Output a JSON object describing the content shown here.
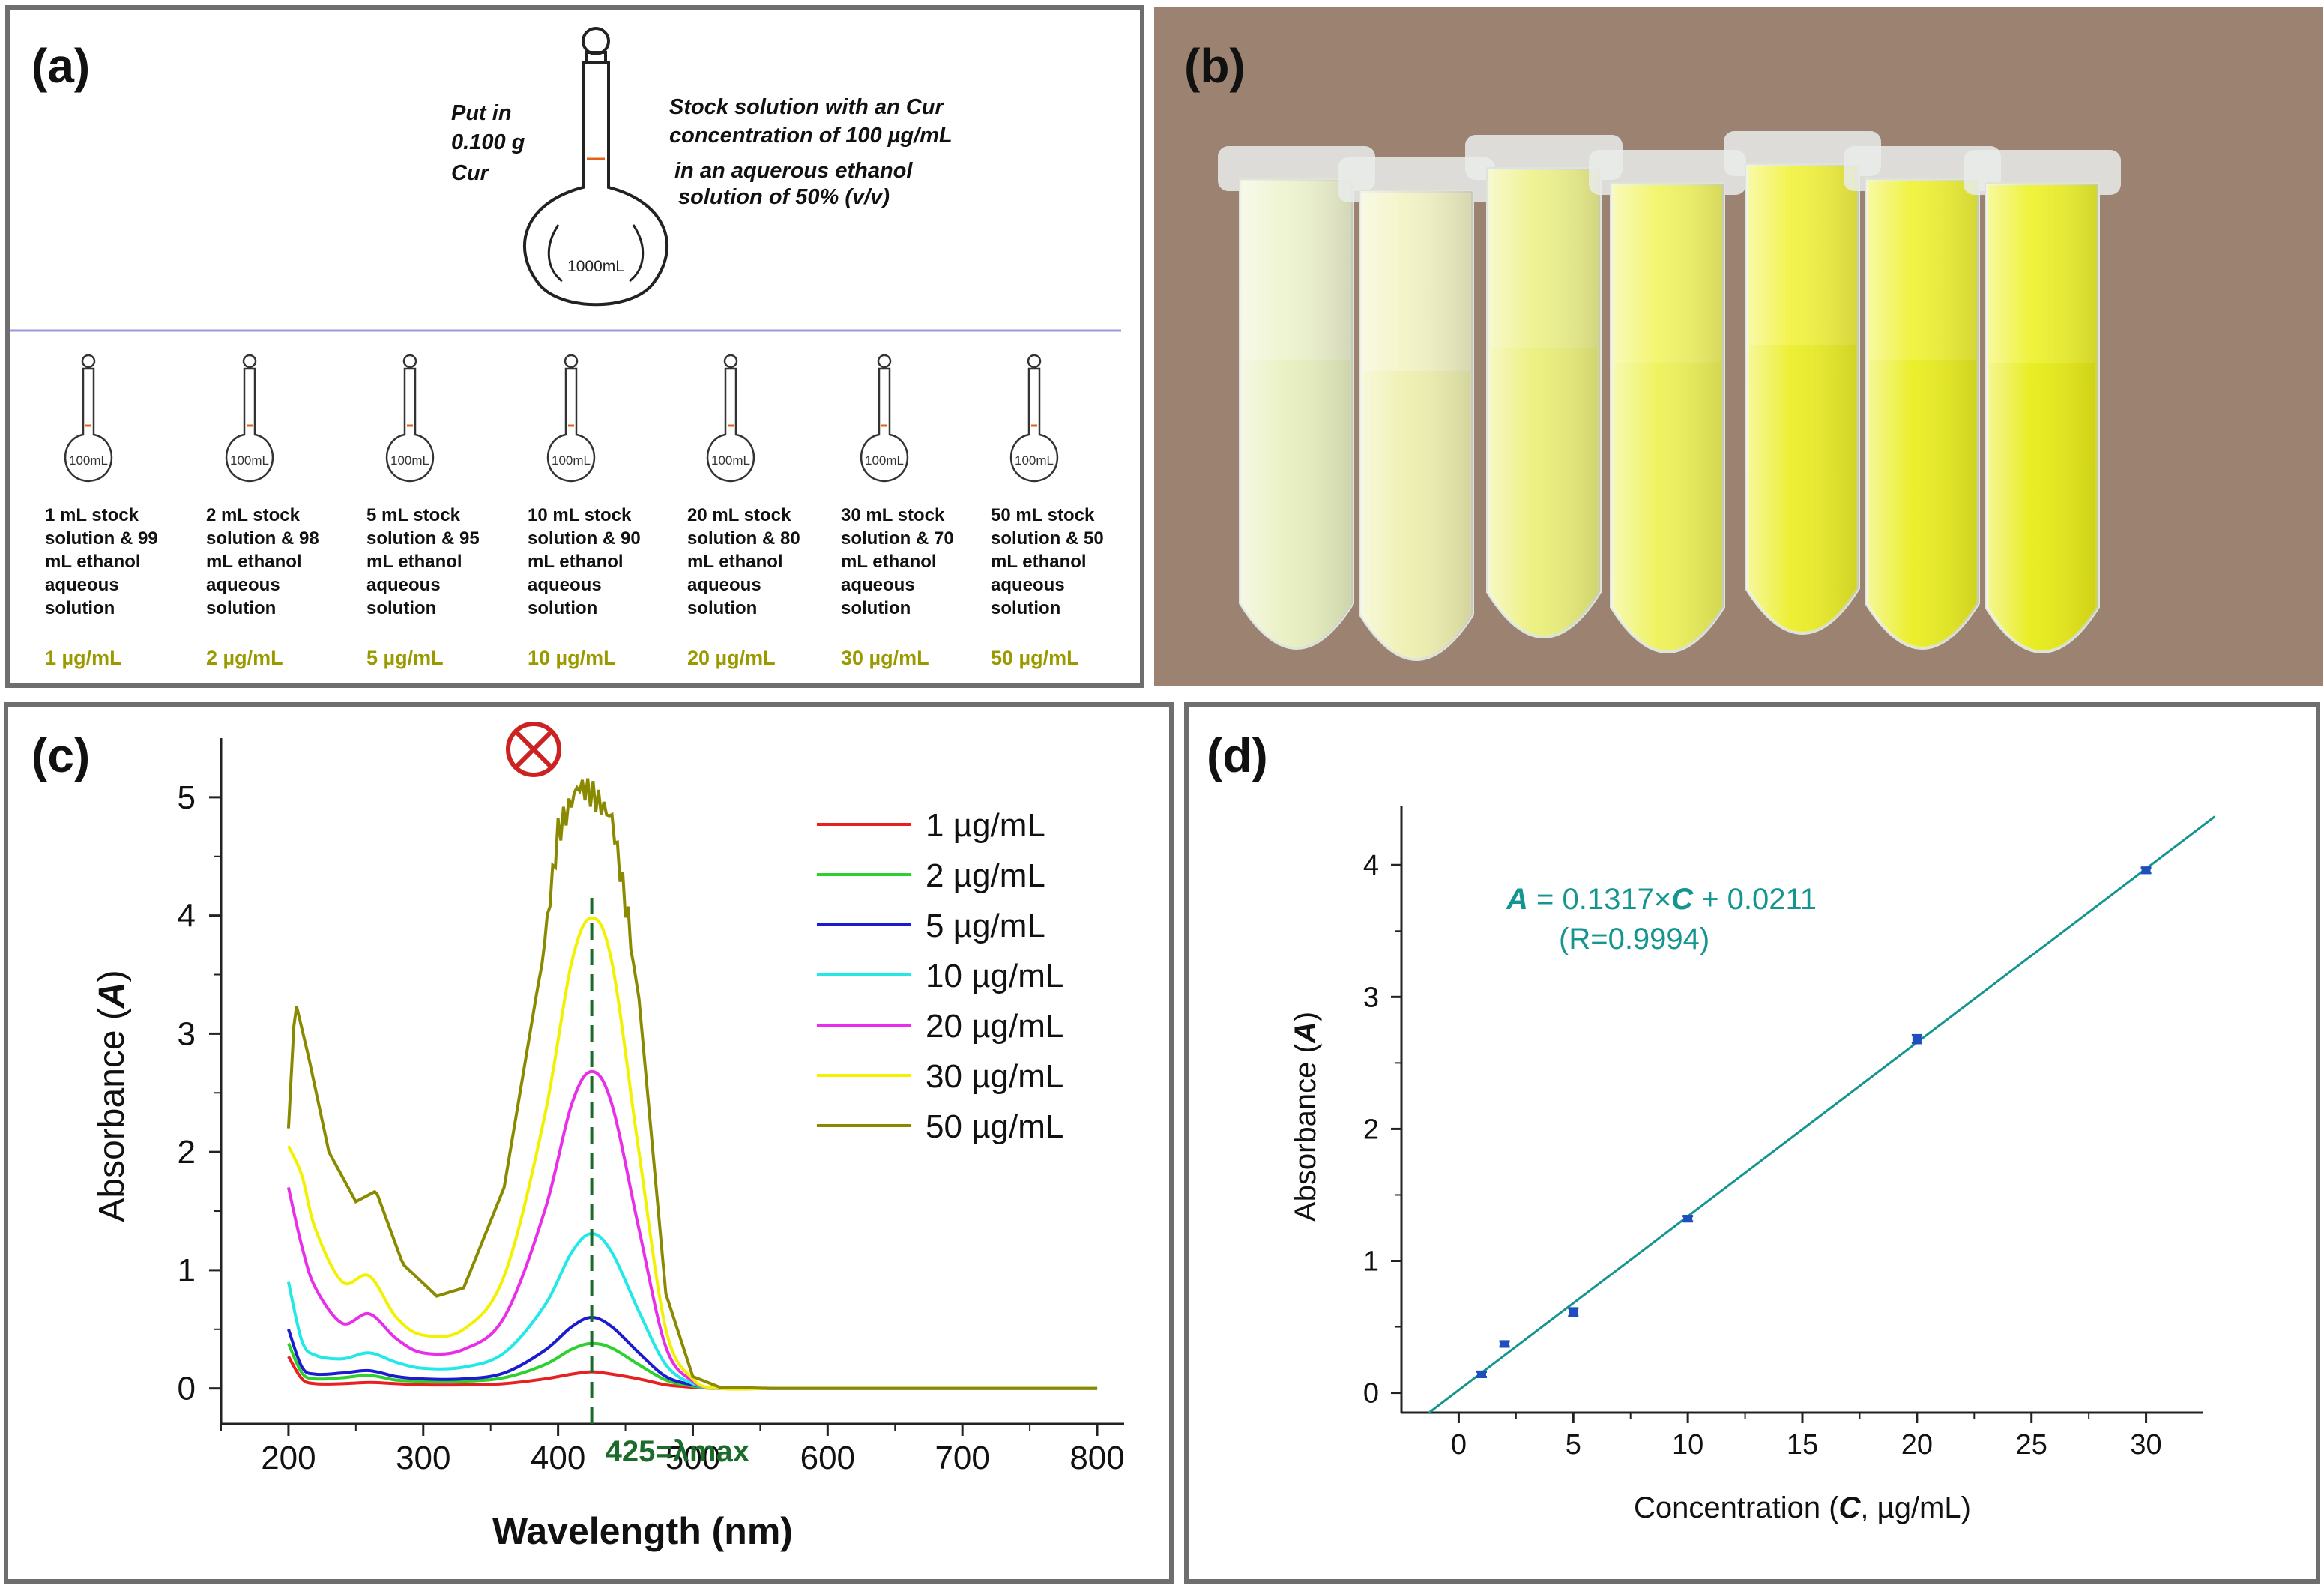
{
  "panel_a": {
    "label": "(a)",
    "put_in": [
      "Put in",
      "0.100 g",
      "Cur"
    ],
    "stock_text": [
      "Stock solution with an Cur",
      "concentration of 100 µg/mL",
      "in an aquerous ethanol",
      "solution of 50% (v/v)"
    ],
    "big_flask_label": "1000mL",
    "small_flask_label": "100mL",
    "dilutions": [
      {
        "lines": [
          "1 mL stock",
          "solution & 99",
          "mL ethanol",
          "aqueous",
          "solution"
        ],
        "conc": "1 µg/mL"
      },
      {
        "lines": [
          "2 mL stock",
          "solution & 98",
          "mL ethanol",
          "aqueous",
          "solution"
        ],
        "conc": "2 µg/mL"
      },
      {
        "lines": [
          "5 mL stock",
          "solution & 95",
          "mL ethanol",
          "aqueous",
          "solution"
        ],
        "conc": "5 µg/mL"
      },
      {
        "lines": [
          "10 mL stock",
          "solution & 90",
          "mL ethanol",
          "aqueous",
          "solution"
        ],
        "conc": "10 µg/mL"
      },
      {
        "lines": [
          "20 mL stock",
          "solution & 80",
          "mL ethanol",
          "aqueous",
          "solution"
        ],
        "conc": "20 µg/mL"
      },
      {
        "lines": [
          "30 mL stock",
          "solution & 70",
          "mL ethanol",
          "aqueous",
          "solution"
        ],
        "conc": "30 µg/mL"
      },
      {
        "lines": [
          "50 mL stock",
          "solution & 50",
          "mL ethanol",
          "aqueous",
          "solution"
        ],
        "conc": "50 µg/mL"
      }
    ]
  },
  "panel_b": {
    "label": "(b)"
  },
  "colors": {
    "frame": "#6e6e6e",
    "concentration_text": "#9a9a00",
    "fit_line": "#14958f",
    "equation": "#14958f",
    "data_points": "#1f4fbf",
    "lambda_line": "#1b6b2a",
    "cross_marker": "#cc2222"
  },
  "chart_data": [
    {
      "panel": "(c)",
      "type": "line",
      "xlabel": "Wavelength (nm)",
      "ylabel": "Absorbance (A)",
      "ylabel_italic_symbol": "A",
      "xlim": [
        150,
        820
      ],
      "ylim": [
        -0.3,
        5.5
      ],
      "xticks": [
        200,
        300,
        400,
        500,
        600,
        700,
        800
      ],
      "yticks": [
        0,
        1,
        2,
        3,
        4,
        5
      ],
      "annotation": "425=λmax",
      "annotation_x": 425,
      "series": [
        {
          "name": "1 µg/mL",
          "color": "#e82020",
          "x": [
            200,
            210,
            220,
            240,
            260,
            280,
            300,
            330,
            360,
            390,
            410,
            425,
            440,
            460,
            480,
            500,
            520,
            560,
            600,
            800
          ],
          "values": [
            0.27,
            0.08,
            0.04,
            0.04,
            0.05,
            0.04,
            0.03,
            0.03,
            0.04,
            0.08,
            0.12,
            0.14,
            0.12,
            0.08,
            0.03,
            0.01,
            0.0,
            0.0,
            0.0,
            0.0
          ]
        },
        {
          "name": "2 µg/mL",
          "color": "#2ed02e",
          "x": [
            200,
            210,
            220,
            240,
            260,
            280,
            300,
            330,
            360,
            390,
            410,
            425,
            440,
            460,
            480,
            500,
            520,
            560,
            600,
            800
          ],
          "values": [
            0.38,
            0.13,
            0.08,
            0.09,
            0.11,
            0.07,
            0.06,
            0.06,
            0.09,
            0.2,
            0.33,
            0.38,
            0.34,
            0.2,
            0.07,
            0.02,
            0.0,
            0.0,
            0.0,
            0.0
          ]
        },
        {
          "name": "5 µg/mL",
          "color": "#1b1bd0",
          "x": [
            200,
            210,
            220,
            240,
            260,
            280,
            300,
            330,
            360,
            390,
            410,
            425,
            440,
            460,
            480,
            500,
            520,
            560,
            600,
            800
          ],
          "values": [
            0.5,
            0.18,
            0.12,
            0.13,
            0.15,
            0.1,
            0.08,
            0.08,
            0.13,
            0.32,
            0.52,
            0.6,
            0.52,
            0.3,
            0.1,
            0.03,
            0.0,
            0.0,
            0.0,
            0.0
          ]
        },
        {
          "name": "10 µg/mL",
          "color": "#22e8e8",
          "x": [
            200,
            210,
            220,
            240,
            260,
            280,
            300,
            330,
            360,
            390,
            410,
            425,
            440,
            460,
            480,
            500,
            520,
            560,
            600,
            800
          ],
          "values": [
            0.9,
            0.4,
            0.28,
            0.25,
            0.3,
            0.22,
            0.17,
            0.18,
            0.3,
            0.7,
            1.15,
            1.31,
            1.15,
            0.65,
            0.2,
            0.04,
            0.0,
            0.0,
            0.0,
            0.0
          ]
        },
        {
          "name": "20 µg/mL",
          "color": "#e82ee8",
          "x": [
            200,
            210,
            220,
            240,
            260,
            280,
            300,
            330,
            360,
            390,
            410,
            425,
            440,
            460,
            480,
            500,
            520,
            560,
            600,
            800
          ],
          "values": [
            1.7,
            1.2,
            0.85,
            0.55,
            0.63,
            0.42,
            0.3,
            0.33,
            0.6,
            1.5,
            2.4,
            2.68,
            2.4,
            1.35,
            0.35,
            0.06,
            0.0,
            0.0,
            0.0,
            0.0
          ]
        },
        {
          "name": "30 µg/mL",
          "color": "#f2f200",
          "x": [
            200,
            210,
            220,
            240,
            260,
            280,
            300,
            330,
            360,
            390,
            410,
            425,
            440,
            460,
            480,
            500,
            520,
            560,
            600,
            800
          ],
          "values": [
            2.05,
            1.8,
            1.35,
            0.9,
            0.95,
            0.6,
            0.45,
            0.5,
            0.95,
            2.3,
            3.6,
            3.98,
            3.6,
            2.0,
            0.5,
            0.08,
            0.0,
            0.0,
            0.0,
            0.0
          ]
        },
        {
          "name": "50 µg/mL",
          "color": "#8a8a00",
          "x": [
            200,
            205,
            215,
            230,
            250,
            265,
            285,
            310,
            330,
            360,
            385,
            400,
            415,
            425,
            440,
            460,
            480,
            500,
            520,
            560,
            600,
            800
          ],
          "values": [
            2.2,
            3.28,
            2.8,
            2.0,
            1.58,
            1.67,
            1.05,
            0.78,
            0.85,
            1.7,
            3.4,
            4.75,
            5.1,
            5.0,
            4.75,
            3.3,
            0.8,
            0.1,
            0.01,
            0.0,
            0.0,
            0.0
          ]
        }
      ]
    },
    {
      "panel": "(d)",
      "type": "scatter",
      "xlabel": "Concentration (C, µg/mL)",
      "ylabel": "Absorbance (A)",
      "xlim": [
        -2.5,
        32.5
      ],
      "ylim": [
        -0.15,
        4.45
      ],
      "xticks": [
        0,
        5,
        10,
        15,
        20,
        25,
        30
      ],
      "yticks": [
        0,
        1,
        2,
        3,
        4
      ],
      "equation": "A = 0.1317×C +  0.0211",
      "r_text": "(R=0.9994)",
      "fit": {
        "slope": 0.1317,
        "intercept": 0.0211,
        "x_range": [
          -1.3,
          33
        ]
      },
      "points": {
        "x": [
          1,
          2,
          5,
          10,
          20,
          30
        ],
        "y": [
          0.14,
          0.37,
          0.61,
          1.32,
          2.68,
          3.96
        ],
        "err": [
          0.02,
          0.02,
          0.03,
          0.02,
          0.03,
          0.02
        ]
      }
    }
  ]
}
